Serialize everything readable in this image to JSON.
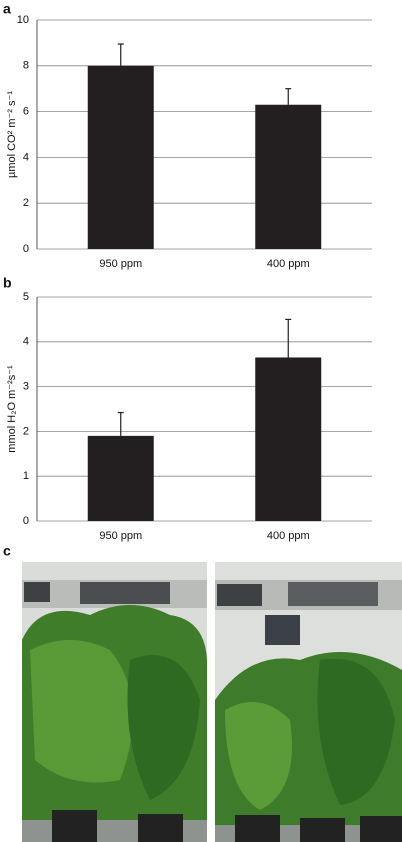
{
  "chart_data": [
    {
      "type": "bar",
      "panel": "a",
      "ylabel": "µmol CO² m⁻² s⁻¹",
      "categories": [
        "950 ppm",
        "400 ppm"
      ],
      "values": [
        8.0,
        6.3
      ],
      "errors": [
        0.95,
        0.7
      ],
      "color": "#231f20",
      "ylim": [
        0,
        10
      ],
      "yticks": [
        0,
        2,
        4,
        6,
        8,
        10
      ],
      "grid": true
    },
    {
      "type": "bar",
      "panel": "b",
      "ylabel": "mmol H₂O m⁻²s⁻¹",
      "categories": [
        "950 ppm",
        "400 ppm"
      ],
      "values": [
        1.9,
        3.65
      ],
      "errors": [
        0.52,
        0.85
      ],
      "color": "#231f20",
      "ylim": [
        0,
        5
      ],
      "yticks": [
        0,
        1,
        2,
        3,
        4,
        5
      ],
      "grid": true
    }
  ],
  "photo_panel": "c"
}
